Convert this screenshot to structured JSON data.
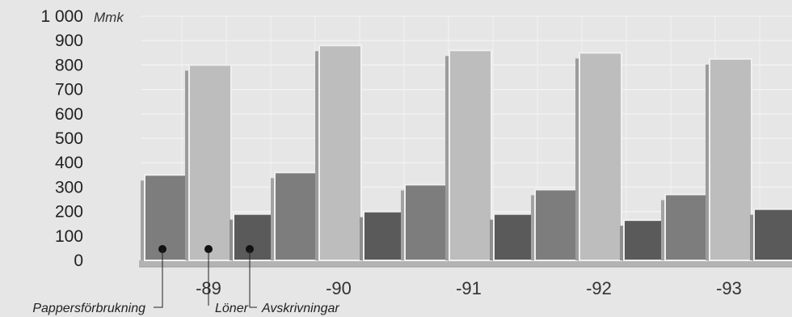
{
  "chart_data": {
    "type": "bar",
    "unit": "Mmk",
    "categories": [
      "-89",
      "-90",
      "-91",
      "-92",
      "-93"
    ],
    "series": [
      {
        "name": "Pappersförbrukning",
        "values": [
          350,
          360,
          310,
          290,
          270
        ],
        "color": "#7d7d7d"
      },
      {
        "name": "Löner",
        "values": [
          800,
          880,
          860,
          850,
          825
        ],
        "color": "#bdbdbd"
      },
      {
        "name": "Avskrivningar",
        "values": [
          190,
          200,
          190,
          165,
          210
        ],
        "color": "#5a5a5a"
      }
    ],
    "yticks": [
      {
        "value": 0,
        "label": "0"
      },
      {
        "value": 100,
        "label": "100"
      },
      {
        "value": 200,
        "label": "200"
      },
      {
        "value": 300,
        "label": "300"
      },
      {
        "value": 400,
        "label": "400"
      },
      {
        "value": 500,
        "label": "500"
      },
      {
        "value": 600,
        "label": "600"
      },
      {
        "value": 700,
        "label": "700"
      },
      {
        "value": 800,
        "label": "800"
      },
      {
        "value": 900,
        "label": "900"
      },
      {
        "value": 1000,
        "label": "1 000"
      }
    ],
    "ylim": [
      0,
      1000
    ],
    "grid": true,
    "legend_position": "bottom-left"
  }
}
